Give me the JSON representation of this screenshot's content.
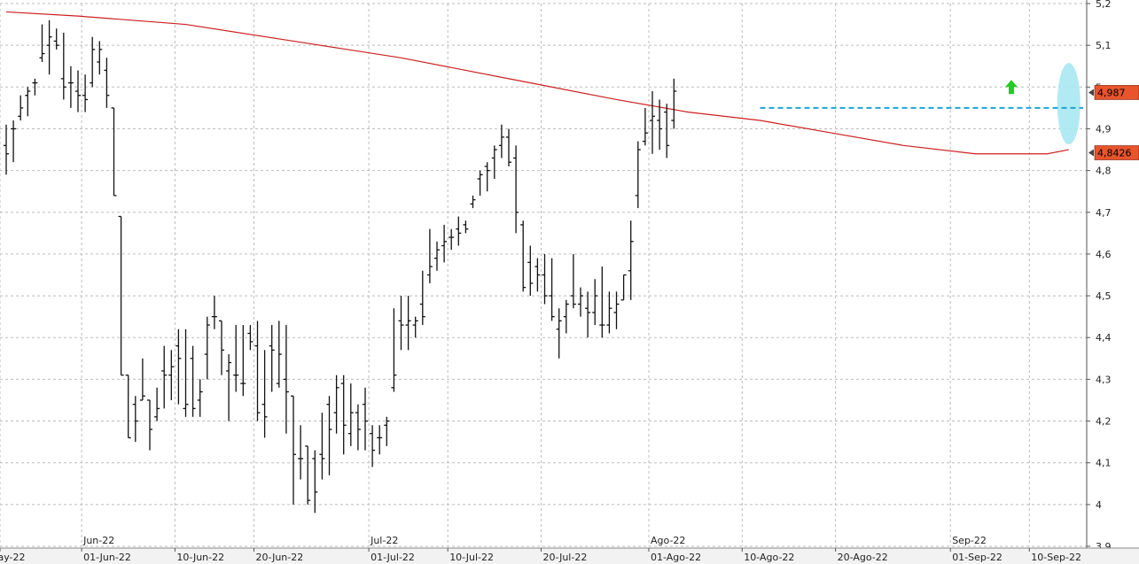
{
  "chart_data": {
    "type": "ohlc",
    "instrument_scale": "price",
    "ylim": [
      3.9,
      5.2
    ],
    "y_ticks": [
      "3,9",
      "4",
      "4,1",
      "4,2",
      "4,3",
      "4,4",
      "4,5",
      "4,6",
      "4,7",
      "4,8",
      "4,9",
      "5",
      "5,1",
      "5,2"
    ],
    "y_tick_values": [
      3.9,
      4.0,
      4.1,
      4.2,
      4.3,
      4.4,
      4.5,
      4.6,
      4.7,
      4.8,
      4.9,
      5.0,
      5.1,
      5.2
    ],
    "x_labels": [
      {
        "text": "May-22",
        "bar": -1
      },
      {
        "text": "01-Jun-22",
        "bar": 11
      },
      {
        "text": "10-Jun-22",
        "bar": 24
      },
      {
        "text": "20-Jun-22",
        "bar": 35
      },
      {
        "text": "01-Jul-22",
        "bar": 51
      },
      {
        "text": "10-Jul-22",
        "bar": 62
      },
      {
        "text": "20-Jul-22",
        "bar": 75
      },
      {
        "text": "01-Ago-22",
        "bar": 90
      },
      {
        "text": "10-Ago-22",
        "bar": 103
      },
      {
        "text": "20-Ago-22",
        "bar": 116
      },
      {
        "text": "01-Sep-22",
        "bar": 132
      },
      {
        "text": "10-Sep-22",
        "bar": 143
      }
    ],
    "month_labels": [
      {
        "text": "Jun-22",
        "bar": 11
      },
      {
        "text": "Jul-22",
        "bar": 51
      },
      {
        "text": "Ago-22",
        "bar": 90
      },
      {
        "text": "Sep-22",
        "bar": 132
      }
    ],
    "bars": [
      [
        4.86,
        4.91,
        4.79,
        4.84
      ],
      [
        4.9,
        4.92,
        4.82,
        4.9
      ],
      [
        4.93,
        4.98,
        4.92,
        4.95
      ],
      [
        4.98,
        5.0,
        4.93,
        4.99
      ],
      [
        5.01,
        5.02,
        4.98,
        5.01
      ],
      [
        5.07,
        5.15,
        5.06,
        5.08
      ],
      [
        5.1,
        5.16,
        5.03,
        5.12
      ],
      [
        5.11,
        5.14,
        5.09,
        5.1
      ],
      [
        5.02,
        5.13,
        4.97,
        5.0
      ],
      [
        5.01,
        5.05,
        4.95,
        5.01
      ],
      [
        4.99,
        5.04,
        4.94,
        4.98
      ],
      [
        4.98,
        5.03,
        4.94,
        4.97
      ],
      [
        5.01,
        5.12,
        5.0,
        5.09
      ],
      [
        5.06,
        5.11,
        5.03,
        5.09
      ],
      [
        5.04,
        5.07,
        4.95,
        4.98
      ],
      [
        4.95,
        4.95,
        4.74,
        4.74
      ],
      [
        4.69,
        4.69,
        4.31,
        4.31
      ],
      [
        4.31,
        4.31,
        4.16,
        4.16
      ],
      [
        4.24,
        4.26,
        4.15,
        4.2
      ],
      [
        4.25,
        4.35,
        4.25,
        4.26
      ],
      [
        4.25,
        4.25,
        4.13,
        4.18
      ],
      [
        4.21,
        4.28,
        4.2,
        4.23
      ],
      [
        4.32,
        4.38,
        4.23,
        4.31
      ],
      [
        4.31,
        4.37,
        4.25,
        4.33
      ],
      [
        4.38,
        4.42,
        4.24,
        4.35
      ],
      [
        4.23,
        4.42,
        4.21,
        4.24
      ],
      [
        4.35,
        4.38,
        4.21,
        4.23
      ],
      [
        4.25,
        4.3,
        4.21,
        4.27
      ],
      [
        4.36,
        4.45,
        4.3,
        4.43
      ],
      [
        4.45,
        4.5,
        4.42,
        4.45
      ],
      [
        4.44,
        4.44,
        4.31,
        4.37
      ],
      [
        4.32,
        4.36,
        4.2,
        4.34
      ],
      [
        4.31,
        4.43,
        4.27,
        4.31
      ],
      [
        4.29,
        4.43,
        4.26,
        4.29
      ],
      [
        4.41,
        4.43,
        4.37,
        4.39
      ],
      [
        4.38,
        4.44,
        4.2,
        4.22
      ],
      [
        4.24,
        4.37,
        4.16,
        4.21
      ],
      [
        4.38,
        4.43,
        4.27,
        4.37
      ],
      [
        4.29,
        4.44,
        4.28,
        4.36
      ],
      [
        4.3,
        4.43,
        4.17,
        4.27
      ],
      [
        4.26,
        4.26,
        4.0,
        4.12
      ],
      [
        4.11,
        4.19,
        4.06,
        4.11
      ],
      [
        4.14,
        4.14,
        4.0,
        4.01
      ],
      [
        4.11,
        4.13,
        3.98,
        4.03
      ],
      [
        4.12,
        4.22,
        4.06,
        4.11
      ],
      [
        4.24,
        4.26,
        4.07,
        4.18
      ],
      [
        4.22,
        4.31,
        4.17,
        4.28
      ],
      [
        4.29,
        4.31,
        4.12,
        4.19
      ],
      [
        4.17,
        4.29,
        4.14,
        4.22
      ],
      [
        4.22,
        4.24,
        4.13,
        4.18
      ],
      [
        4.24,
        4.28,
        4.13,
        4.2
      ],
      [
        4.17,
        4.19,
        4.09,
        4.13
      ],
      [
        4.16,
        4.19,
        4.12,
        4.16
      ],
      [
        4.19,
        4.21,
        4.14,
        4.2
      ],
      [
        4.28,
        4.47,
        4.27,
        4.31
      ],
      [
        4.44,
        4.5,
        4.37,
        4.43
      ],
      [
        4.43,
        4.5,
        4.37,
        4.44
      ],
      [
        4.43,
        4.45,
        4.4,
        4.44
      ],
      [
        4.48,
        4.56,
        4.43,
        4.45
      ],
      [
        4.55,
        4.66,
        4.53,
        4.57
      ],
      [
        4.59,
        4.63,
        4.56,
        4.61
      ],
      [
        4.62,
        4.67,
        4.58,
        4.63
      ],
      [
        4.64,
        4.66,
        4.61,
        4.64
      ],
      [
        4.66,
        4.69,
        4.62,
        4.65
      ],
      [
        4.67,
        4.68,
        4.65,
        4.66
      ],
      [
        4.72,
        4.74,
        4.71,
        4.73
      ],
      [
        4.78,
        4.8,
        4.74,
        4.79
      ],
      [
        4.81,
        4.82,
        4.75,
        4.8
      ],
      [
        4.83,
        4.86,
        4.78,
        4.85
      ],
      [
        4.86,
        4.91,
        4.83,
        4.88
      ],
      [
        4.88,
        4.9,
        4.81,
        4.82
      ],
      [
        4.83,
        4.86,
        4.65,
        4.7
      ],
      [
        4.67,
        4.68,
        4.51,
        4.52
      ],
      [
        4.58,
        4.62,
        4.5,
        4.53
      ],
      [
        4.57,
        4.59,
        4.51,
        4.55
      ],
      [
        4.55,
        4.6,
        4.48,
        4.5
      ],
      [
        4.5,
        4.59,
        4.44,
        4.45
      ],
      [
        4.42,
        4.47,
        4.35,
        4.44
      ],
      [
        4.45,
        4.49,
        4.41,
        4.48
      ],
      [
        4.5,
        4.6,
        4.47,
        4.48
      ],
      [
        4.48,
        4.52,
        4.45,
        4.5
      ],
      [
        4.47,
        4.51,
        4.4,
        4.46
      ],
      [
        4.46,
        4.54,
        4.43,
        4.5
      ],
      [
        4.43,
        4.57,
        4.4,
        4.43
      ],
      [
        4.43,
        4.51,
        4.41,
        4.47
      ],
      [
        4.46,
        4.51,
        4.42,
        4.48
      ],
      [
        4.49,
        4.55,
        4.49,
        4.55
      ],
      [
        4.56,
        4.68,
        4.49,
        4.63
      ],
      [
        4.74,
        4.87,
        4.71,
        4.85
      ],
      [
        4.87,
        4.95,
        4.86,
        4.89
      ],
      [
        4.92,
        4.99,
        4.84,
        4.93
      ],
      [
        4.92,
        4.97,
        4.85,
        4.9
      ],
      [
        4.94,
        4.96,
        4.83,
        4.86
      ],
      [
        4.92,
        5.02,
        4.9,
        4.99
      ]
    ],
    "moving_average": {
      "color": "#cc1f1f",
      "points": [
        [
          0,
          5.18
        ],
        [
          10,
          5.17
        ],
        [
          25,
          5.15
        ],
        [
          40,
          5.11
        ],
        [
          55,
          5.07
        ],
        [
          70,
          5.02
        ],
        [
          85,
          4.97
        ],
        [
          95,
          4.94
        ],
        [
          105,
          4.92
        ],
        [
          115,
          4.89
        ],
        [
          125,
          4.86
        ],
        [
          135,
          4.84
        ],
        [
          140,
          4.84
        ],
        [
          145,
          4.84
        ],
        [
          148,
          4.85
        ]
      ]
    },
    "resistance_line": {
      "value": 4.95,
      "from_bar": 105,
      "to_bar": 150,
      "color": "#1aa6d6"
    },
    "highlight_ellipse": {
      "bar": 148,
      "center_value": 4.96,
      "color": "#a9e8f2"
    },
    "arrow": {
      "bar": 140,
      "value": 5.0,
      "color": "#22cc22"
    },
    "price_tags": [
      {
        "label": "4,987",
        "value": 4.987,
        "color": "#e8542c"
      },
      {
        "label": "4,8426",
        "value": 4.8426,
        "color": "#e8542c"
      }
    ]
  }
}
